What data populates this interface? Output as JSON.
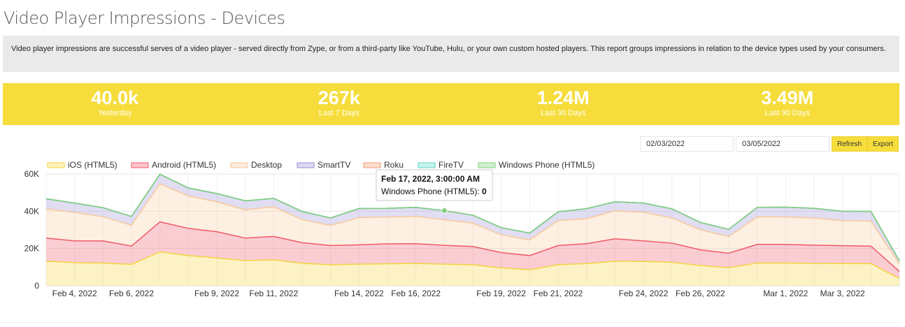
{
  "page": {
    "title": "Video Player Impressions - Devices",
    "description": "Video player impressions are successful serves of a video player - served directly from Zype, or from a third-party like YouTube, Hulu, or your own custom hosted players. This report groups impressions in relation to the device types used by your consumers."
  },
  "stats": [
    {
      "value": "40.0k",
      "label": "Yesterday"
    },
    {
      "value": "267k",
      "label": "Last 7 Days"
    },
    {
      "value": "1.24M",
      "label": "Last 30 Days"
    },
    {
      "value": "3.49M",
      "label": "Last 90 Days"
    }
  ],
  "controls": {
    "start_date": "02/03/2022",
    "end_date": "03/05/2022",
    "refresh_label": "Refresh",
    "export_label": "Export"
  },
  "tooltip": {
    "title": "Feb 17, 2022, 3:00:00 AM",
    "series": "Windows Phone (HTML5): ",
    "value": "0"
  },
  "colors": {
    "accent": "#f6dd3b"
  },
  "chart_data": {
    "type": "area",
    "stacked": true,
    "x": [
      "2022-02-03",
      "2022-02-04",
      "2022-02-05",
      "2022-02-06",
      "2022-02-07",
      "2022-02-08",
      "2022-02-09",
      "2022-02-10",
      "2022-02-11",
      "2022-02-12",
      "2022-02-13",
      "2022-02-14",
      "2022-02-15",
      "2022-02-16",
      "2022-02-17",
      "2022-02-18",
      "2022-02-19",
      "2022-02-20",
      "2022-02-21",
      "2022-02-22",
      "2022-02-23",
      "2022-02-24",
      "2022-02-25",
      "2022-02-26",
      "2022-02-27",
      "2022-02-28",
      "2022-03-01",
      "2022-03-02",
      "2022-03-03",
      "2022-03-04",
      "2022-03-05"
    ],
    "xticks": [
      {
        "x": "2022-02-04",
        "label": "Feb 4, 2022"
      },
      {
        "x": "2022-02-06",
        "label": "Feb 6, 2022"
      },
      {
        "x": "2022-02-09",
        "label": "Feb 9, 2022"
      },
      {
        "x": "2022-02-11",
        "label": "Feb 11, 2022"
      },
      {
        "x": "2022-02-14",
        "label": "Feb 14, 2022"
      },
      {
        "x": "2022-02-16",
        "label": "Feb 16, 2022"
      },
      {
        "x": "2022-02-19",
        "label": "Feb 19, 2022"
      },
      {
        "x": "2022-02-21",
        "label": "Feb 21, 2022"
      },
      {
        "x": "2022-02-24",
        "label": "Feb 24, 2022"
      },
      {
        "x": "2022-02-26",
        "label": "Feb 26, 2022"
      },
      {
        "x": "2022-03-01",
        "label": "Mar 1, 2022"
      },
      {
        "x": "2022-03-03",
        "label": "Mar 3, 2022"
      }
    ],
    "yticks": [
      {
        "v": 0,
        "label": "0"
      },
      {
        "v": 20000,
        "label": "20K"
      },
      {
        "v": 40000,
        "label": "40K"
      },
      {
        "v": 60000,
        "label": "60K"
      }
    ],
    "ylim": [
      0,
      60000
    ],
    "grid": true,
    "legend_position": "top",
    "series": [
      {
        "name": "iOS (HTML5)",
        "color": "#f5d33f",
        "values": [
          13200,
          12400,
          12200,
          11500,
          18200,
          16200,
          14900,
          13500,
          13900,
          12100,
          11300,
          11600,
          11800,
          12000,
          11600,
          11300,
          9600,
          8600,
          11300,
          11900,
          13200,
          13100,
          12600,
          10900,
          9700,
          12200,
          12200,
          12000,
          11900,
          11900,
          3900
        ]
      },
      {
        "name": "Android (HTML5)",
        "color": "#f05a6b",
        "values": [
          12400,
          11700,
          11900,
          9800,
          16100,
          14600,
          14100,
          12100,
          12600,
          11000,
          10300,
          10400,
          10700,
          10600,
          10100,
          9800,
          8200,
          7600,
          10300,
          10700,
          12000,
          11000,
          10300,
          8400,
          7800,
          10000,
          10000,
          9800,
          9600,
          9400,
          3800
        ]
      },
      {
        "name": "Desktop",
        "color": "#f7c99a",
        "values": [
          15700,
          15300,
          13000,
          11200,
          20400,
          17400,
          16100,
          15200,
          15900,
          12400,
          10800,
          14600,
          14400,
          14600,
          13700,
          12500,
          9600,
          8400,
          13400,
          13400,
          15000,
          15400,
          13500,
          10800,
          8900,
          14800,
          14700,
          14600,
          13400,
          13500,
          4000
        ]
      },
      {
        "name": "SmartTV",
        "color": "#9a8fd6",
        "values": [
          5400,
          5000,
          4800,
          4700,
          5200,
          4300,
          4400,
          4800,
          4500,
          4400,
          4000,
          4900,
          4700,
          4900,
          4900,
          4300,
          3800,
          3700,
          4700,
          5400,
          4900,
          4900,
          4900,
          3900,
          3900,
          5100,
          5300,
          5200,
          5100,
          5100,
          1700
        ]
      },
      {
        "name": "Roku",
        "color": "#f29b77",
        "values": [
          0,
          0,
          0,
          0,
          0,
          0,
          0,
          0,
          0,
          0,
          0,
          0,
          0,
          0,
          0,
          0,
          0,
          0,
          0,
          0,
          0,
          0,
          0,
          0,
          0,
          0,
          0,
          0,
          0,
          0,
          0
        ]
      },
      {
        "name": "FireTV",
        "color": "#5fd8c8",
        "values": [
          0,
          0,
          0,
          0,
          0,
          0,
          0,
          0,
          0,
          0,
          0,
          0,
          0,
          0,
          0,
          0,
          0,
          0,
          0,
          0,
          0,
          0,
          0,
          0,
          0,
          0,
          0,
          0,
          0,
          0,
          0
        ]
      },
      {
        "name": "Windows Phone (HTML5)",
        "color": "#7fd07f",
        "values": [
          0,
          0,
          0,
          0,
          0,
          0,
          0,
          0,
          0,
          0,
          0,
          0,
          0,
          0,
          0,
          0,
          0,
          0,
          0,
          0,
          0,
          0,
          0,
          0,
          0,
          0,
          0,
          0,
          0,
          0,
          0
        ]
      }
    ],
    "highlight": {
      "x": "2022-02-17",
      "series": "Windows Phone (HTML5)",
      "value": 0
    }
  }
}
